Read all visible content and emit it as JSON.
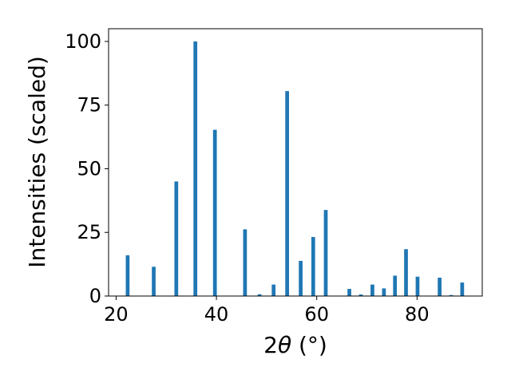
{
  "chart_data": {
    "type": "bar",
    "title": "",
    "xlabel_prefix": "2",
    "xlabel_theta": "θ",
    "xlabel_unit": " (°)",
    "ylabel": "Intensities (scaled)",
    "xlim": [
      18.5,
      93.0
    ],
    "ylim": [
      0,
      105
    ],
    "xticks": [
      20,
      40,
      60,
      80
    ],
    "yticks": [
      0,
      25,
      50,
      75,
      100
    ],
    "bar_width": 0.75,
    "bar_color": "#1f77b4",
    "grid": false,
    "legend": "none",
    "x": [
      22.3,
      27.5,
      32.0,
      35.8,
      39.7,
      45.7,
      48.6,
      51.4,
      54.1,
      56.8,
      59.3,
      61.8,
      66.5,
      68.8,
      71.1,
      73.4,
      75.6,
      77.8,
      80.1,
      84.5,
      86.8,
      89.0
    ],
    "values": [
      16.0,
      11.5,
      45.0,
      100.0,
      65.3,
      26.2,
      0.7,
      4.5,
      80.5,
      13.8,
      23.2,
      33.8,
      2.8,
      0.6,
      4.5,
      3.0,
      8.0,
      18.4,
      7.6,
      7.2,
      0.4,
      5.3
    ]
  }
}
